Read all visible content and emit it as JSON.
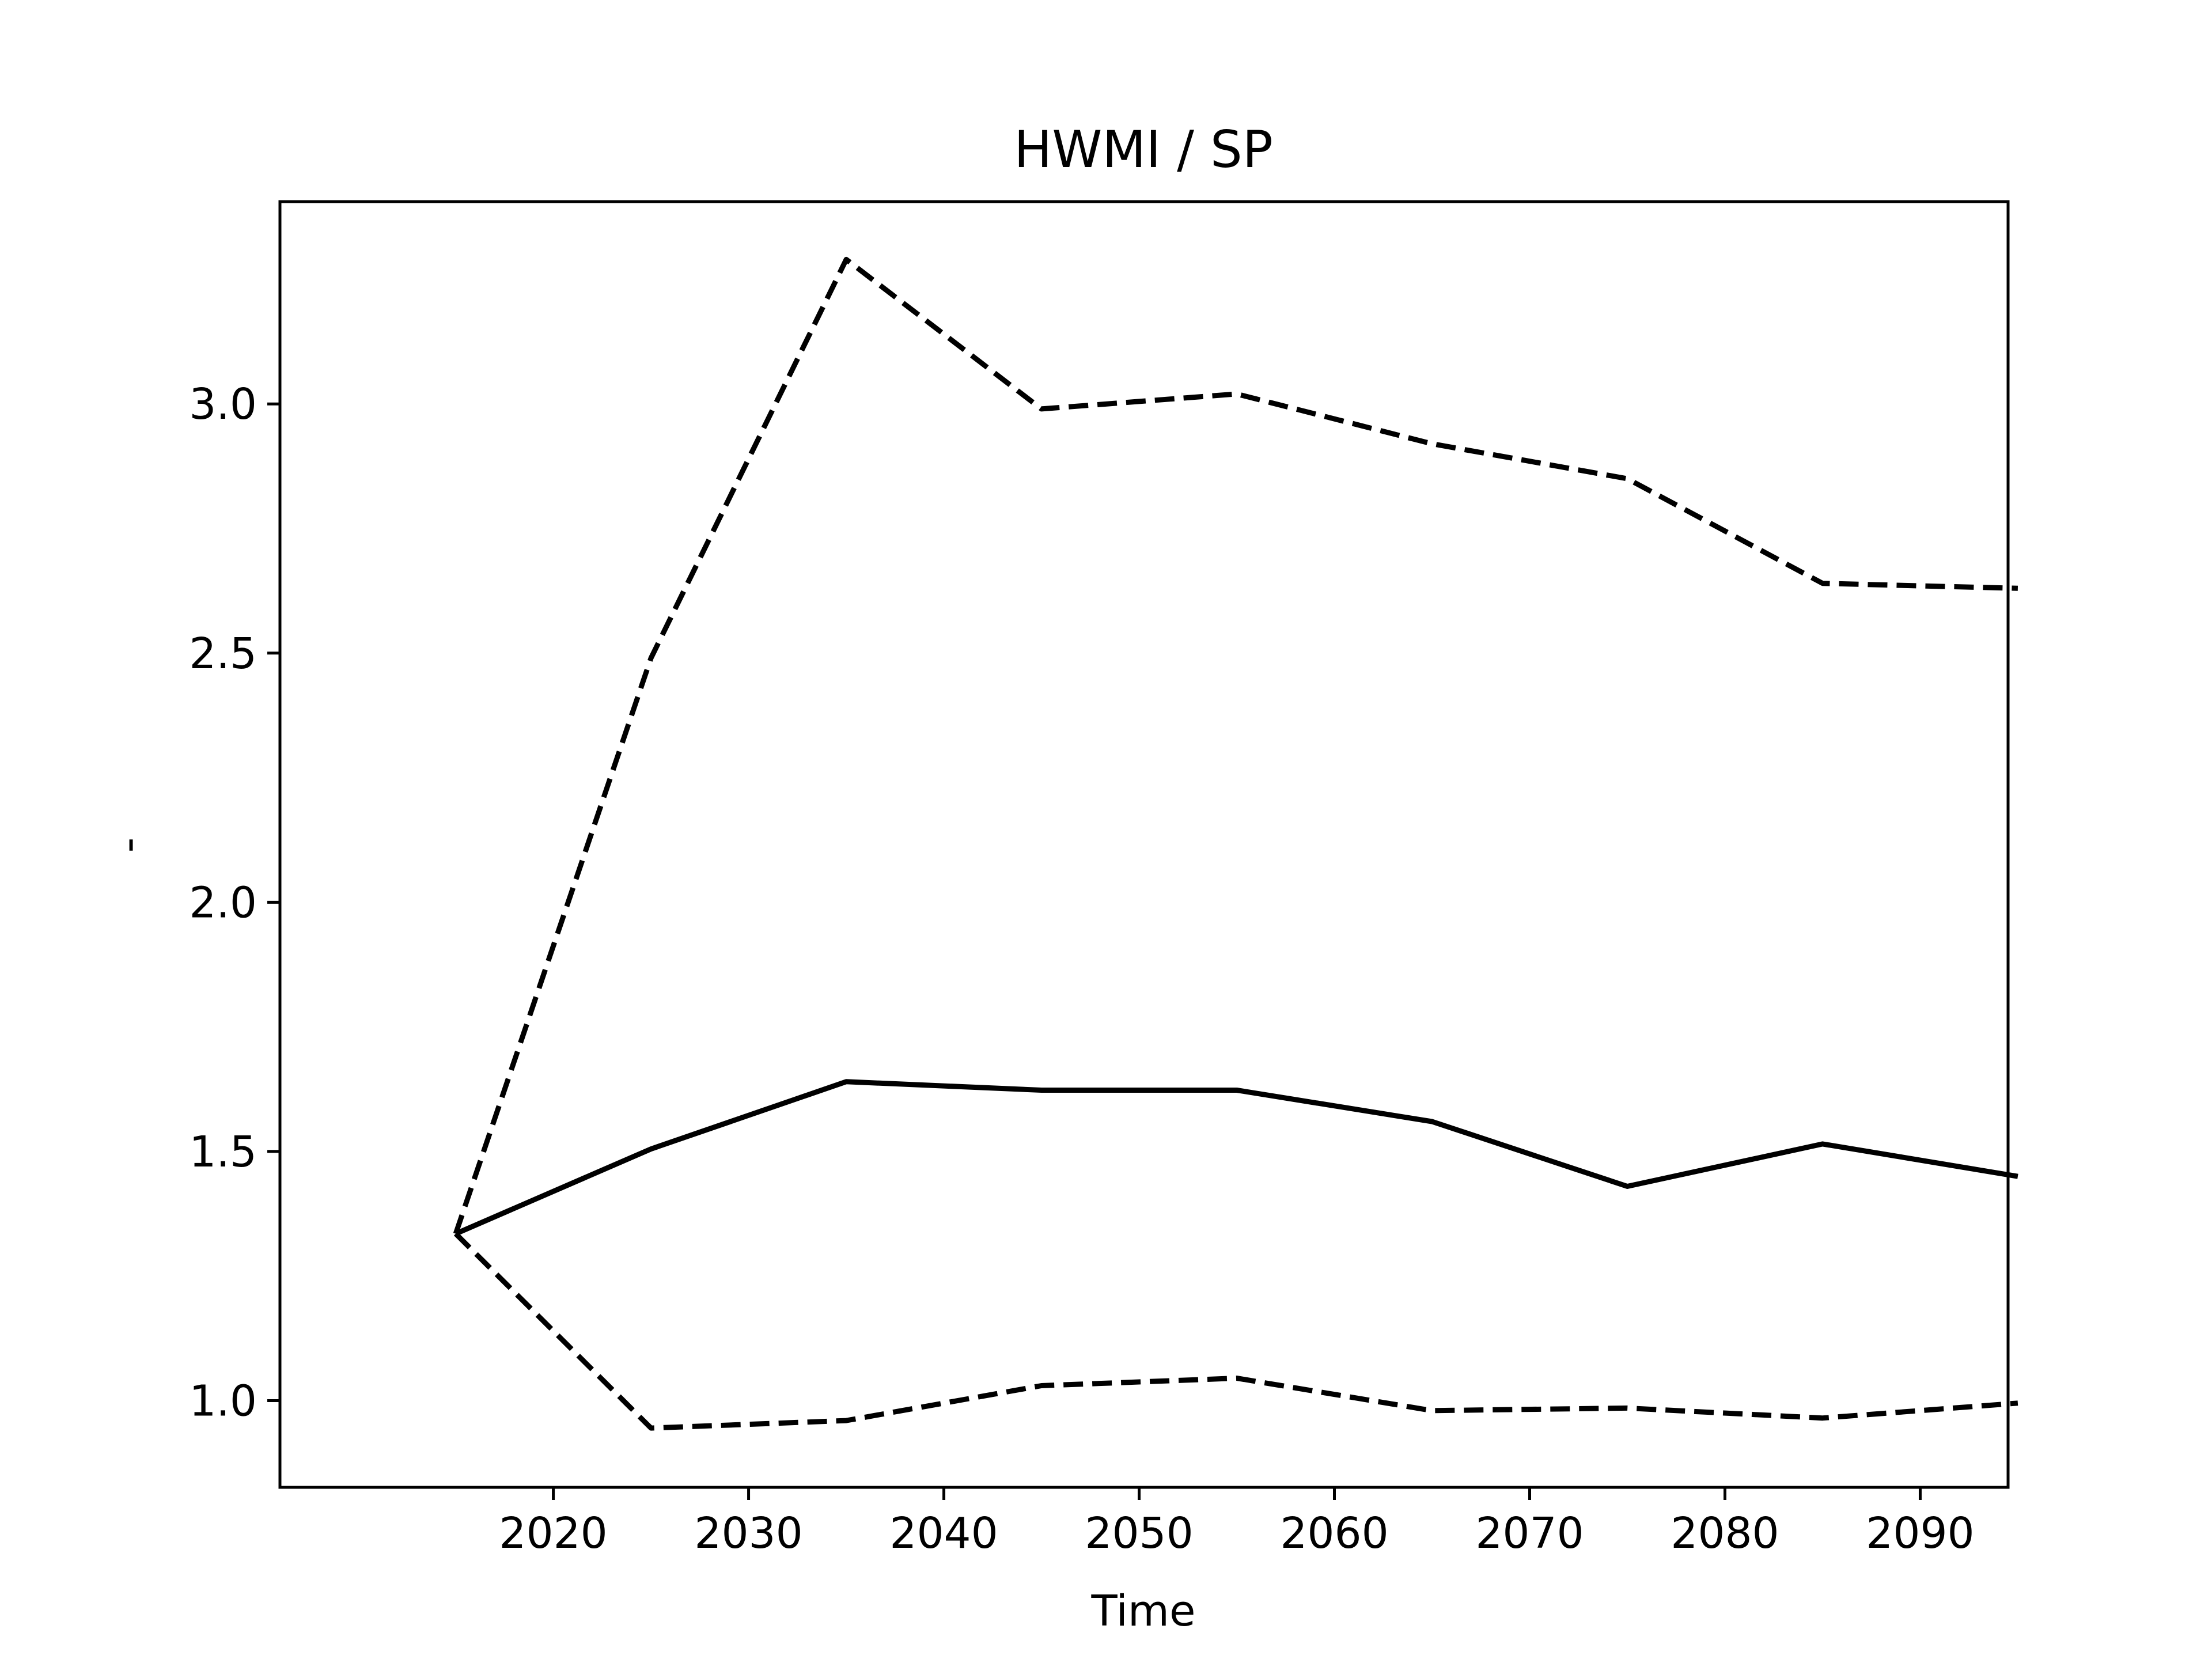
{
  "chart_data": {
    "type": "line",
    "title": "HWMI / SP",
    "xlabel": "Time",
    "ylabel": "-",
    "x": [
      2015,
      2025,
      2035,
      2045,
      2055,
      2065,
      2075,
      2085,
      2095
    ],
    "series": [
      {
        "style": "solid",
        "values": [
          1.335,
          1.505,
          1.64,
          1.623,
          1.623,
          1.56,
          1.43,
          1.515,
          1.45
        ]
      },
      {
        "style": "dashed",
        "values": [
          1.335,
          2.49,
          3.29,
          2.99,
          3.02,
          2.92,
          2.85,
          2.64,
          2.63
        ]
      },
      {
        "style": "dashed",
        "values": [
          1.335,
          0.945,
          0.96,
          1.03,
          1.045,
          0.98,
          0.985,
          0.965,
          0.995
        ]
      }
    ],
    "xlim": [
      2006,
      2094.5
    ],
    "ylim": [
      0.826,
      3.406
    ],
    "xticks": [
      2020,
      2030,
      2040,
      2050,
      2060,
      2070,
      2080,
      2090
    ],
    "yticks": [
      1.0,
      1.5,
      2.0,
      2.5,
      3.0
    ],
    "ytick_labels": [
      "1.0",
      "1.5",
      "2.0",
      "2.5",
      "3.0"
    ],
    "xtick_labels": [
      "2020",
      "2030",
      "2040",
      "2050",
      "2060",
      "2070",
      "2080",
      "2090"
    ],
    "grid": false,
    "legend": "none",
    "line_color": "#000000"
  }
}
